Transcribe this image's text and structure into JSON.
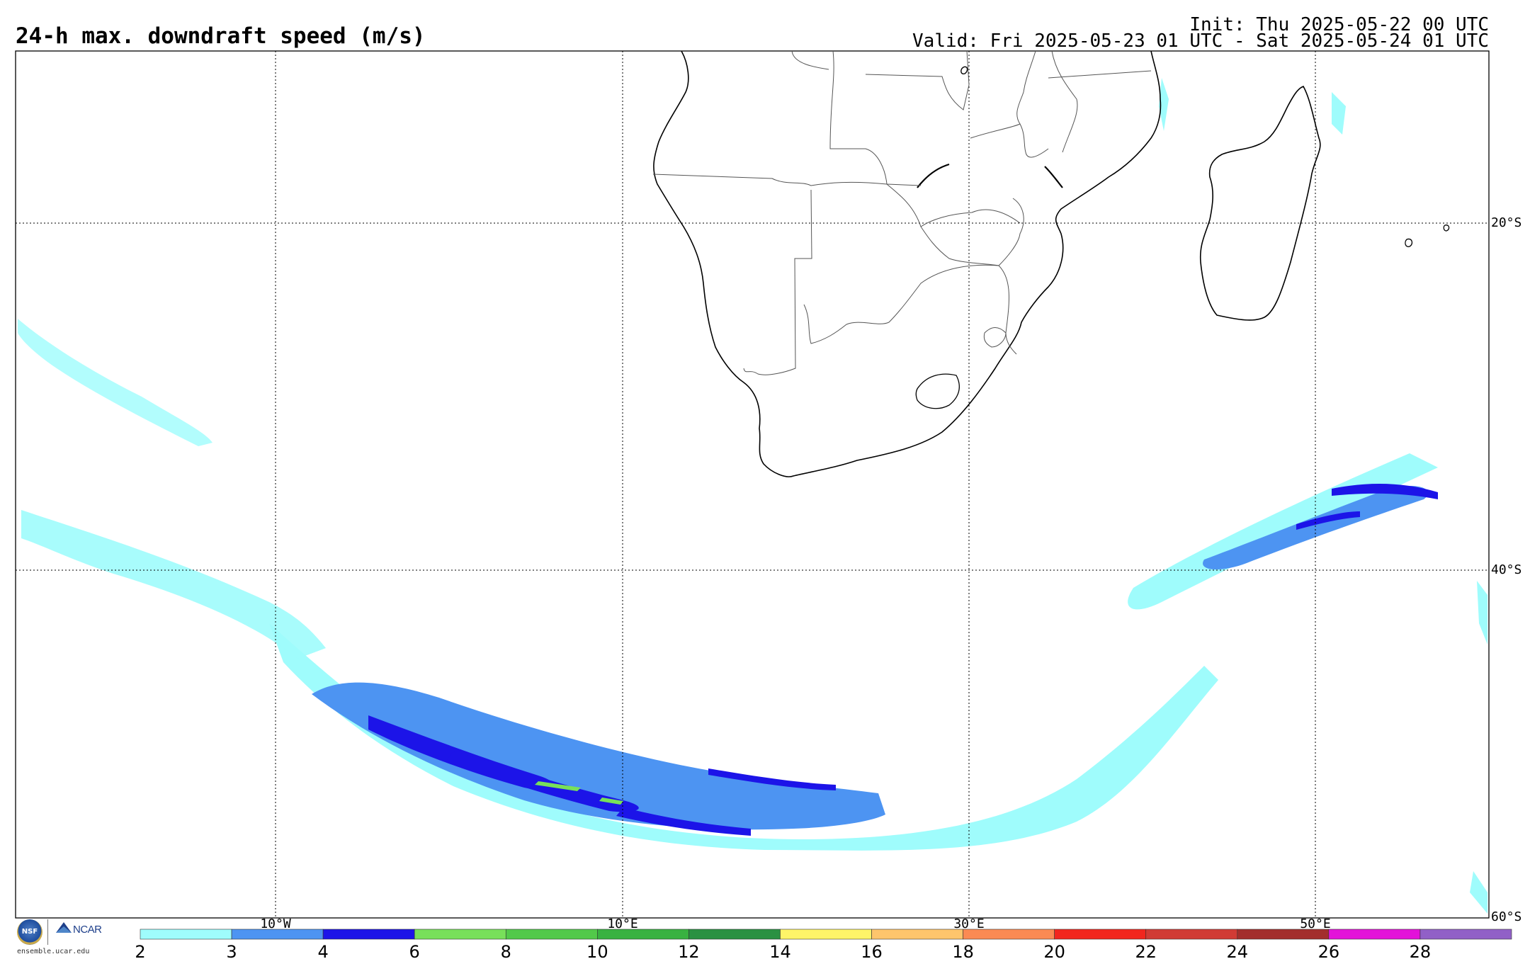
{
  "header": {
    "title": "24-h max. downdraft speed (m/s)",
    "init": "Init: Thu 2025-05-22 00 UTC",
    "valid": "Valid: Fri 2025-05-23 01 UTC - Sat 2025-05-24 01 UTC"
  },
  "map": {
    "lon_ticks": [
      "10°W",
      "10°E",
      "30°E",
      "50°E"
    ],
    "lat_ticks": [
      "20°S",
      "40°S",
      "60°S"
    ],
    "features": [
      "Africa",
      "Madagascar",
      "Lesotho",
      "Eswatini"
    ]
  },
  "colorbar": {
    "ticks": [
      "2",
      "3",
      "4",
      "6",
      "8",
      "10",
      "12",
      "14",
      "16",
      "18",
      "20",
      "22",
      "24",
      "26",
      "28"
    ],
    "colors": [
      "#9ffcfc",
      "#4d94f2",
      "#1c14e8",
      "#78e05a",
      "#52c94a",
      "#39b241",
      "#2a9142",
      "#fef468",
      "#fec56c",
      "#fb8a53",
      "#f2261e",
      "#d13b35",
      "#a32e2c",
      "#e312d9",
      "#9160c7"
    ]
  },
  "footer": {
    "nsf_label": "NSF",
    "ncar_label": "NCAR",
    "site": "ensemble.ucar.edu"
  }
}
